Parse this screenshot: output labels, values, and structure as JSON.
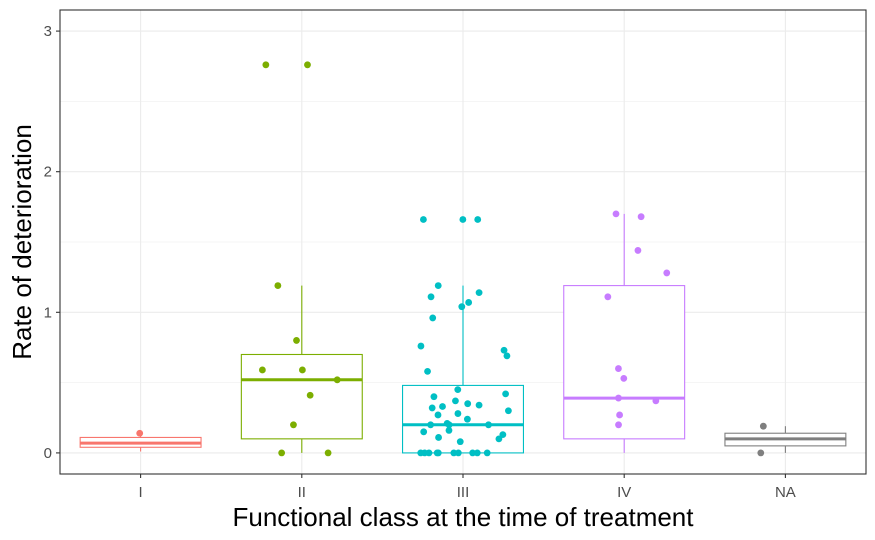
{
  "chart_data": {
    "type": "boxplot",
    "title": "",
    "xlabel": "Functional class  at the time of treatment",
    "ylabel": "Rate of deterioration",
    "ylim": [
      -0.15,
      3.15
    ],
    "yticks": [
      0,
      1,
      2,
      3
    ],
    "grid": true,
    "legend": "none",
    "categories": [
      "I",
      "II",
      "III",
      "IV",
      "NA"
    ],
    "series": [
      {
        "category": "I",
        "color": "#F8766D",
        "box": {
          "min": 0.01,
          "q1": 0.04,
          "median": 0.07,
          "q3": 0.11,
          "max": 0.14
        },
        "points": [
          0.14
        ]
      },
      {
        "category": "II",
        "color": "#7CAE00",
        "box": {
          "min": 0.0,
          "q1": 0.1,
          "median": 0.52,
          "q3": 0.7,
          "max": 1.19
        },
        "points": [
          2.76,
          2.76,
          1.19,
          0.8,
          0.59,
          0.59,
          0.52,
          0.41,
          0.2,
          0.0,
          0.0
        ]
      },
      {
        "category": "III",
        "color": "#00BFC4",
        "box": {
          "min": 0.0,
          "q1": 0.0,
          "median": 0.2,
          "q3": 0.48,
          "max": 1.19
        },
        "points": [
          1.66,
          1.66,
          1.66,
          1.19,
          1.14,
          1.11,
          1.07,
          1.04,
          0.96,
          0.76,
          0.73,
          0.69,
          0.58,
          0.45,
          0.42,
          0.4,
          0.37,
          0.35,
          0.34,
          0.33,
          0.32,
          0.3,
          0.28,
          0.27,
          0.24,
          0.21,
          0.2,
          0.2,
          0.2,
          0.16,
          0.15,
          0.13,
          0.11,
          0.1,
          0.08,
          0.0,
          0.0,
          0.0,
          0.0,
          0.0,
          0.0,
          0.0,
          0.0,
          0.0,
          0.0
        ]
      },
      {
        "category": "IV",
        "color": "#C77CFF",
        "box": {
          "min": 0.0,
          "q1": 0.1,
          "median": 0.39,
          "q3": 1.19,
          "max": 1.7
        },
        "points": [
          1.7,
          1.68,
          1.44,
          1.28,
          1.11,
          0.6,
          0.53,
          0.39,
          0.37,
          0.27,
          0.2
        ]
      },
      {
        "category": "NA",
        "color": "#7F7F7F",
        "box": {
          "min": 0.0,
          "q1": 0.05,
          "median": 0.1,
          "q3": 0.14,
          "max": 0.19
        },
        "points": [
          0.19,
          0.0
        ]
      }
    ]
  }
}
